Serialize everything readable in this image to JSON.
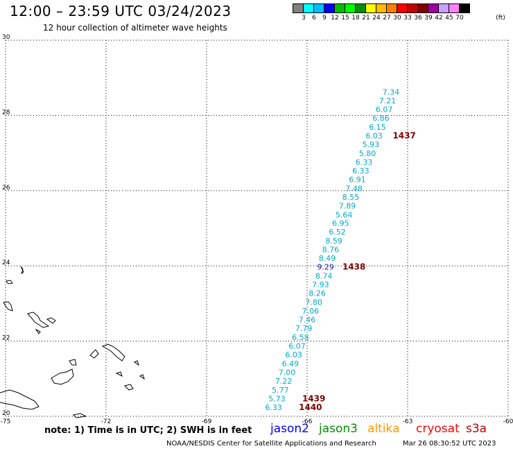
{
  "header": {
    "title": "12:00 – 23:59 UTC 03/24/2023",
    "subtitle": "12 hour collection of altimeter wave heights"
  },
  "colorscale": {
    "colors": [
      "#808080",
      "#00ffff",
      "#00bfff",
      "#0000ff",
      "#00bf00",
      "#00ff00",
      "#008f00",
      "#ffff00",
      "#ffbf00",
      "#ff8000",
      "#ff0000",
      "#bf0000",
      "#800000",
      "#9f009f",
      "#c8a0ff",
      "#ff80ff",
      "#000000"
    ],
    "labels": [
      "3",
      "6",
      "9",
      "12",
      "15",
      "18",
      "21",
      "24",
      "27",
      "30",
      "33",
      "36",
      "39",
      "42",
      "45",
      "70"
    ],
    "unit": "(ft)"
  },
  "map": {
    "lon_range": [
      -75,
      -60
    ],
    "lat_range": [
      20,
      30
    ],
    "x_ticks": [
      "-75",
      "-72",
      "-69",
      "-66",
      "-63",
      "-60"
    ],
    "y_ticks": [
      "30",
      "28",
      "26",
      "24",
      "22",
      "20"
    ],
    "swh_color": "#00aacc",
    "dark_color": "#1a1aa0",
    "time_color": "#800000",
    "swh_readings": [
      {
        "v": "7.34",
        "lon": -63.5,
        "lat": 28.55
      },
      {
        "v": "7.21",
        "lon": -63.6,
        "lat": 28.32
      },
      {
        "v": "6.07",
        "lon": -63.7,
        "lat": 28.09
      },
      {
        "v": "6.86",
        "lon": -63.8,
        "lat": 27.86
      },
      {
        "v": "6.15",
        "lon": -63.9,
        "lat": 27.62
      },
      {
        "v": "6.03",
        "lon": -64.0,
        "lat": 27.39
      },
      {
        "v": "5.93",
        "lon": -64.1,
        "lat": 27.16
      },
      {
        "v": "5.80",
        "lon": -64.2,
        "lat": 26.92
      },
      {
        "v": "6.33",
        "lon": -64.3,
        "lat": 26.69
      },
      {
        "v": "6.33",
        "lon": -64.4,
        "lat": 26.46
      },
      {
        "v": "6.91",
        "lon": -64.5,
        "lat": 26.23
      },
      {
        "v": "7.48",
        "lon": -64.6,
        "lat": 25.99
      },
      {
        "v": "8.55",
        "lon": -64.7,
        "lat": 25.76
      },
      {
        "v": "7.89",
        "lon": -64.8,
        "lat": 25.53
      },
      {
        "v": "5.64",
        "lon": -64.9,
        "lat": 25.29
      },
      {
        "v": "6.95",
        "lon": -65.0,
        "lat": 25.06
      },
      {
        "v": "6.52",
        "lon": -65.1,
        "lat": 24.83
      },
      {
        "v": "8.59",
        "lon": -65.2,
        "lat": 24.59
      },
      {
        "v": "8.76",
        "lon": -65.3,
        "lat": 24.36
      },
      {
        "v": "8.49",
        "lon": -65.4,
        "lat": 24.13
      },
      {
        "v": "9.29",
        "lon": -65.45,
        "lat": 23.9,
        "dark": true
      },
      {
        "v": "8.74",
        "lon": -65.5,
        "lat": 23.66
      },
      {
        "v": "7.93",
        "lon": -65.6,
        "lat": 23.43
      },
      {
        "v": "8.26",
        "lon": -65.7,
        "lat": 23.2
      },
      {
        "v": "7.80",
        "lon": -65.8,
        "lat": 22.96
      },
      {
        "v": "7.06",
        "lon": -65.9,
        "lat": 22.73
      },
      {
        "v": "7.46",
        "lon": -66.0,
        "lat": 22.5
      },
      {
        "v": "7.79",
        "lon": -66.1,
        "lat": 22.27
      },
      {
        "v": "6.58",
        "lon": -66.2,
        "lat": 22.03
      },
      {
        "v": "6.07",
        "lon": -66.3,
        "lat": 21.8
      },
      {
        "v": "6.03",
        "lon": -66.4,
        "lat": 21.57
      },
      {
        "v": "6.49",
        "lon": -66.5,
        "lat": 21.33
      },
      {
        "v": "7.00",
        "lon": -66.6,
        "lat": 21.1
      },
      {
        "v": "7.22",
        "lon": -66.7,
        "lat": 20.87
      },
      {
        "v": "5.77",
        "lon": -66.8,
        "lat": 20.63
      },
      {
        "v": "5.73",
        "lon": -66.9,
        "lat": 20.4
      },
      {
        "v": "6.33",
        "lon": -67.0,
        "lat": 20.17
      }
    ],
    "time_labels": [
      {
        "v": "1437",
        "lon": -63.1,
        "lat": 27.39
      },
      {
        "v": "1438",
        "lon": -64.6,
        "lat": 23.9
      },
      {
        "v": "1439",
        "lon": -65.8,
        "lat": 20.4
      },
      {
        "v": "1440",
        "lon": -65.9,
        "lat": 20.17
      }
    ]
  },
  "footer": {
    "note": "note: 1) Time is in UTC; 2) SWH is in feet",
    "satellites": [
      {
        "name": "jason2",
        "color": "#0000ff"
      },
      {
        "name": "jason3",
        "color": "#008f00"
      },
      {
        "name": "altika",
        "color": "#ff9900"
      },
      {
        "name": "cryosat",
        "color": "#ff0000"
      },
      {
        "name": "s3a",
        "color": "#bf0000"
      }
    ],
    "credit": "NOAA/NESDIS Center for Satellite Applications and Research",
    "timestamp": "Mar 26 08:30:52 UTC 2023"
  }
}
